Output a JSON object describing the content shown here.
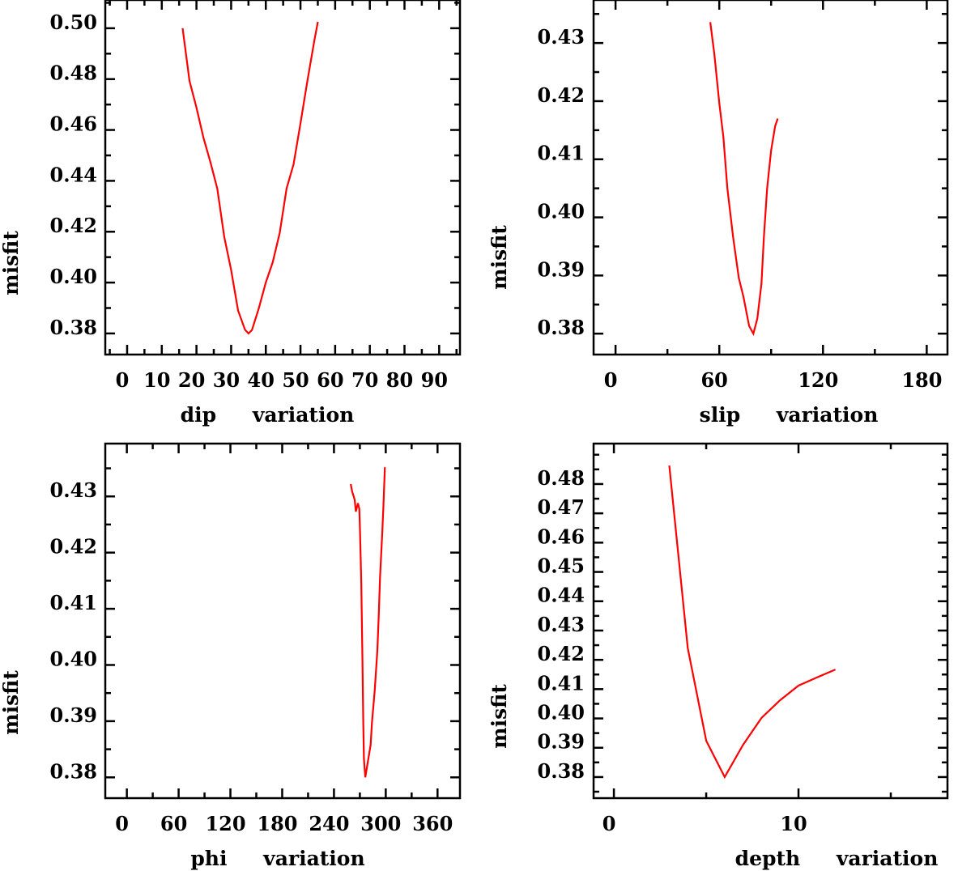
{
  "colors": {
    "curve": "#ff0000",
    "axes": "#000000",
    "background": "#ffffff"
  },
  "chart_data": [
    {
      "type": "line",
      "xlabel": "dip variation",
      "ylabel": "misfit",
      "xlim": [
        -6.3,
        96
      ],
      "ylim": [
        0.3717,
        0.5111
      ],
      "xticks": [
        0,
        10,
        20,
        30,
        40,
        50,
        60,
        70,
        80,
        90
      ],
      "xtick_labels": [
        "0",
        "10",
        "20",
        "30",
        "40",
        "50",
        "60",
        "70",
        "80",
        "90"
      ],
      "xminor": 5,
      "yticks": [
        0.38,
        0.4,
        0.42,
        0.44,
        0.46,
        0.48,
        0.5
      ],
      "ytick_labels": [
        "0.38",
        "0.40",
        "0.42",
        "0.44",
        "0.46",
        "0.48",
        "0.50"
      ],
      "yminor": 0.01,
      "grid": false,
      "series": [
        {
          "name": "misfit",
          "x": [
            16,
            18,
            20,
            22,
            24,
            26,
            28,
            30,
            32,
            34,
            35,
            36,
            38,
            40,
            42,
            44,
            46,
            48,
            50,
            52,
            54,
            55
          ],
          "y": [
            0.5,
            0.4793,
            0.4688,
            0.457,
            0.4475,
            0.437,
            0.418,
            0.405,
            0.389,
            0.3815,
            0.38,
            0.3813,
            0.39,
            0.4,
            0.408,
            0.4195,
            0.437,
            0.4465,
            0.4625,
            0.4793,
            0.4952,
            0.5025
          ]
        }
      ]
    },
    {
      "type": "line",
      "xlabel": "slip variation",
      "ylabel": "misfit",
      "xlim": [
        -12.7,
        192
      ],
      "ylim": [
        0.3764,
        0.4374
      ],
      "xticks": [
        0,
        60,
        120,
        180
      ],
      "xtick_labels": [
        "0",
        "60",
        "120",
        "180"
      ],
      "xminor": 30,
      "yticks": [
        0.38,
        0.39,
        0.4,
        0.41,
        0.42,
        0.43
      ],
      "ytick_labels": [
        "0.38",
        "0.39",
        "0.40",
        "0.41",
        "0.42",
        "0.43"
      ],
      "yminor": 0.005,
      "grid": false,
      "series": [
        {
          "name": "misfit",
          "x": [
            54.8,
            57.2,
            60,
            62.4,
            64.7,
            68,
            71.3,
            74,
            77.3,
            79.7,
            82,
            84.4,
            85.8,
            87.7,
            90,
            92.3,
            93.8
          ],
          "y": [
            0.4336,
            0.428,
            0.4197,
            0.4138,
            0.405,
            0.3966,
            0.3896,
            0.3863,
            0.3813,
            0.38,
            0.3826,
            0.3886,
            0.3966,
            0.405,
            0.4115,
            0.4157,
            0.417
          ]
        }
      ]
    },
    {
      "type": "line",
      "xlabel": "phi variation",
      "ylabel": "misfit",
      "xlim": [
        -25,
        386
      ],
      "ylim": [
        0.3763,
        0.4394
      ],
      "xticks": [
        0,
        60,
        120,
        180,
        240,
        300,
        360
      ],
      "xtick_labels": [
        "0",
        "60",
        "120",
        "180",
        "240",
        "300",
        "360"
      ],
      "xminor": 30,
      "yticks": [
        0.38,
        0.39,
        0.4,
        0.41,
        0.42,
        0.43
      ],
      "ytick_labels": [
        "0.38",
        "0.39",
        "0.40",
        "0.41",
        "0.42",
        "0.43"
      ],
      "yminor": 0.005,
      "grid": false,
      "series": [
        {
          "name": "misfit",
          "x": [
            259.4,
            261,
            264,
            265.3,
            267.8,
            269.4,
            270,
            271.6,
            273,
            274,
            274.7,
            276.3,
            279.4,
            282.5,
            284,
            287.2,
            290.3,
            291.9,
            293.4,
            296,
            297.2,
            299
          ],
          "y": [
            0.4322,
            0.4309,
            0.4294,
            0.4273,
            0.4288,
            0.4278,
            0.4247,
            0.415,
            0.4006,
            0.3897,
            0.3833,
            0.38,
            0.3829,
            0.3858,
            0.3897,
            0.3954,
            0.4026,
            0.4088,
            0.4156,
            0.4237,
            0.428,
            0.4352
          ]
        }
      ]
    },
    {
      "type": "line",
      "xlabel": "depth variation",
      "ylabel": "misfit",
      "xlim": [
        -1.1,
        18.07
      ],
      "ylim": [
        0.3728,
        0.4938
      ],
      "xticks": [
        0,
        10
      ],
      "xtick_labels": [
        "0",
        "10"
      ],
      "xminor": 5,
      "yticks": [
        0.38,
        0.39,
        0.4,
        0.41,
        0.42,
        0.43,
        0.44,
        0.45,
        0.46,
        0.47,
        0.48
      ],
      "ytick_labels": [
        "0.38",
        "0.39",
        "0.40",
        "0.41",
        "0.42",
        "0.43",
        "0.44",
        "0.45",
        "0.46",
        "0.47",
        "0.48"
      ],
      "yminor": 0.005,
      "grid": false,
      "series": [
        {
          "name": "misfit",
          "x": [
            3,
            4,
            5,
            6,
            7,
            8,
            9,
            10,
            11,
            12
          ],
          "y": [
            0.4863,
            0.424,
            0.3924,
            0.38,
            0.391,
            0.4002,
            0.4062,
            0.4112,
            0.414,
            0.4167
          ]
        }
      ]
    }
  ]
}
